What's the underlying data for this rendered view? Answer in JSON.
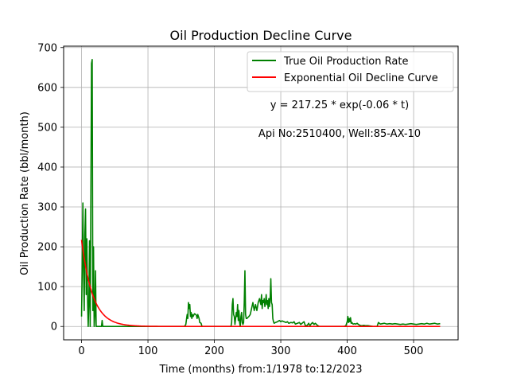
{
  "chart_data": {
    "type": "line",
    "title": "Oil Production Decline Curve",
    "xlabel": "Time (months) from:1/1978 to:12/2023",
    "ylabel": "Oil Production Rate (bbl/month)",
    "xlim": [
      -27,
      567
    ],
    "ylim": [
      -33.5,
      703.5
    ],
    "xticks": [
      0,
      100,
      200,
      300,
      400,
      500
    ],
    "yticks": [
      0,
      100,
      200,
      300,
      400,
      500,
      600,
      700
    ],
    "grid": true,
    "legend_position": "top-right",
    "annotations": [
      "y = 217.25 * exp(-0.06 * t)",
      "Api No:2510400, Well:85-AX-10"
    ],
    "series": [
      {
        "name": "True Oil Production Rate",
        "color": "#008000",
        "points": [
          [
            0,
            25
          ],
          [
            1,
            150
          ],
          [
            2,
            310
          ],
          [
            3,
            140
          ],
          [
            4,
            40
          ],
          [
            5,
            230
          ],
          [
            6,
            295
          ],
          [
            7,
            80
          ],
          [
            8,
            220
          ],
          [
            9,
            70
          ],
          [
            10,
            0
          ],
          [
            11,
            60
          ],
          [
            12,
            215
          ],
          [
            13,
            0
          ],
          [
            14,
            310
          ],
          [
            15,
            660
          ],
          [
            16,
            670
          ],
          [
            17,
            40
          ],
          [
            18,
            200
          ],
          [
            19,
            0
          ],
          [
            20,
            30
          ],
          [
            21,
            140
          ],
          [
            22,
            0
          ],
          [
            24,
            0
          ],
          [
            30,
            0
          ],
          [
            31,
            15
          ],
          [
            32,
            0
          ],
          [
            40,
            0
          ],
          [
            60,
            0
          ],
          [
            80,
            0
          ],
          [
            100,
            0
          ],
          [
            120,
            0
          ],
          [
            140,
            0
          ],
          [
            155,
            0
          ],
          [
            157,
            5
          ],
          [
            158,
            18
          ],
          [
            159,
            30
          ],
          [
            160,
            20
          ],
          [
            161,
            60
          ],
          [
            162,
            45
          ],
          [
            163,
            55
          ],
          [
            164,
            25
          ],
          [
            165,
            35
          ],
          [
            166,
            20
          ],
          [
            167,
            30
          ],
          [
            168,
            25
          ],
          [
            170,
            32
          ],
          [
            172,
            30
          ],
          [
            173,
            28
          ],
          [
            174,
            20
          ],
          [
            175,
            30
          ],
          [
            176,
            25
          ],
          [
            177,
            20
          ],
          [
            178,
            10
          ],
          [
            180,
            8
          ],
          [
            181,
            2
          ],
          [
            182,
            0
          ],
          [
            190,
            0
          ],
          [
            200,
            0
          ],
          [
            210,
            0
          ],
          [
            225,
            0
          ],
          [
            226,
            10
          ],
          [
            227,
            55
          ],
          [
            228,
            70
          ],
          [
            229,
            30
          ],
          [
            230,
            25
          ],
          [
            231,
            5
          ],
          [
            232,
            20
          ],
          [
            233,
            35
          ],
          [
            234,
            25
          ],
          [
            235,
            55
          ],
          [
            236,
            15
          ],
          [
            237,
            40
          ],
          [
            238,
            10
          ],
          [
            239,
            0
          ],
          [
            240,
            25
          ],
          [
            241,
            35
          ],
          [
            242,
            10
          ],
          [
            243,
            5
          ],
          [
            244,
            10
          ],
          [
            245,
            60
          ],
          [
            246,
            140
          ],
          [
            247,
            30
          ],
          [
            248,
            20
          ],
          [
            249,
            20
          ],
          [
            250,
            22
          ],
          [
            252,
            25
          ],
          [
            254,
            30
          ],
          [
            256,
            45
          ],
          [
            258,
            60
          ],
          [
            260,
            40
          ],
          [
            262,
            55
          ],
          [
            264,
            40
          ],
          [
            266,
            60
          ],
          [
            268,
            70
          ],
          [
            270,
            55
          ],
          [
            271,
            80
          ],
          [
            272,
            45
          ],
          [
            273,
            65
          ],
          [
            274,
            60
          ],
          [
            275,
            70
          ],
          [
            276,
            50
          ],
          [
            277,
            60
          ],
          [
            278,
            80
          ],
          [
            279,
            55
          ],
          [
            280,
            65
          ],
          [
            281,
            45
          ],
          [
            282,
            70
          ],
          [
            283,
            50
          ],
          [
            284,
            70
          ],
          [
            285,
            120
          ],
          [
            286,
            60
          ],
          [
            287,
            55
          ],
          [
            288,
            20
          ],
          [
            289,
            12
          ],
          [
            290,
            8
          ],
          [
            292,
            10
          ],
          [
            295,
            12
          ],
          [
            298,
            15
          ],
          [
            300,
            12
          ],
          [
            302,
            14
          ],
          [
            305,
            12
          ],
          [
            308,
            10
          ],
          [
            310,
            12
          ],
          [
            312,
            8
          ],
          [
            315,
            10
          ],
          [
            318,
            9
          ],
          [
            320,
            12
          ],
          [
            322,
            6
          ],
          [
            325,
            8
          ],
          [
            328,
            10
          ],
          [
            330,
            5
          ],
          [
            332,
            8
          ],
          [
            335,
            12
          ],
          [
            337,
            2
          ],
          [
            340,
            3
          ],
          [
            342,
            8
          ],
          [
            344,
            2
          ],
          [
            346,
            7
          ],
          [
            348,
            10
          ],
          [
            350,
            5
          ],
          [
            352,
            8
          ],
          [
            355,
            3
          ],
          [
            358,
            0
          ],
          [
            365,
            0
          ],
          [
            375,
            0
          ],
          [
            385,
            0
          ],
          [
            395,
            0
          ],
          [
            398,
            2
          ],
          [
            400,
            12
          ],
          [
            401,
            25
          ],
          [
            402,
            10
          ],
          [
            403,
            20
          ],
          [
            404,
            12
          ],
          [
            405,
            22
          ],
          [
            406,
            8
          ],
          [
            407,
            10
          ],
          [
            409,
            6
          ],
          [
            411,
            7
          ],
          [
            413,
            6
          ],
          [
            415,
            8
          ],
          [
            417,
            5
          ],
          [
            419,
            3
          ],
          [
            422,
            2
          ],
          [
            425,
            3
          ],
          [
            428,
            2
          ],
          [
            432,
            2
          ],
          [
            436,
            1
          ],
          [
            440,
            0
          ],
          [
            445,
            0
          ],
          [
            447,
            10
          ],
          [
            450,
            6
          ],
          [
            453,
            7
          ],
          [
            456,
            8
          ],
          [
            460,
            6
          ],
          [
            464,
            7
          ],
          [
            468,
            6
          ],
          [
            472,
            7
          ],
          [
            476,
            6
          ],
          [
            480,
            5
          ],
          [
            484,
            6
          ],
          [
            488,
            5
          ],
          [
            492,
            6
          ],
          [
            496,
            7
          ],
          [
            500,
            6
          ],
          [
            504,
            5
          ],
          [
            508,
            6
          ],
          [
            512,
            7
          ],
          [
            516,
            6
          ],
          [
            520,
            8
          ],
          [
            524,
            6
          ],
          [
            528,
            7
          ],
          [
            532,
            8
          ],
          [
            536,
            6
          ],
          [
            540,
            7
          ]
        ]
      },
      {
        "name": "Exponential Oil Decline Curve",
        "color": "#ff0000",
        "function": {
          "a": 217.25,
          "b": -0.06,
          "x_start": 0,
          "x_end": 540
        }
      }
    ]
  }
}
